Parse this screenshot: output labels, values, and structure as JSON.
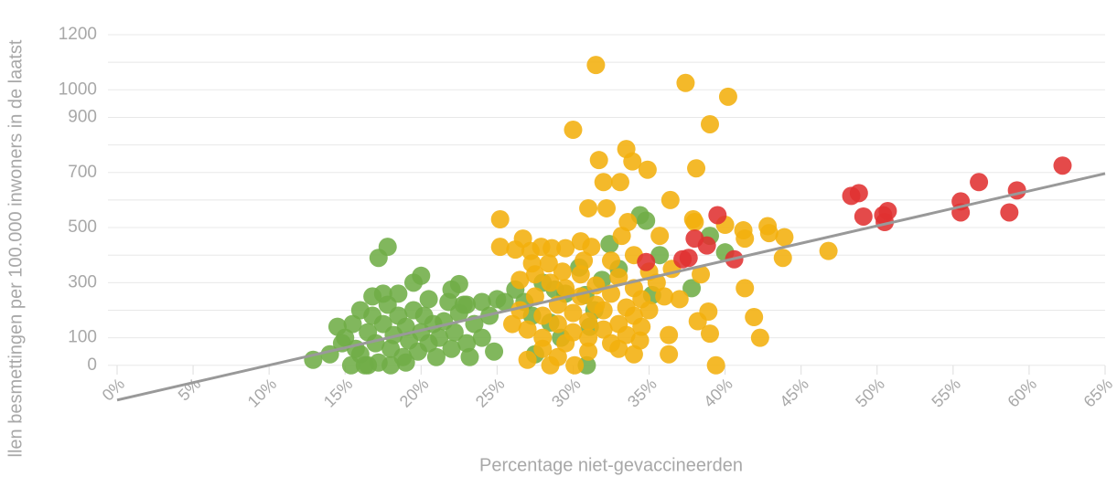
{
  "chart_data": {
    "type": "scatter",
    "y_label": "llen besmettingen per 100.000 inwoners in de laatst",
    "x_label": "Percentage niet-gevaccineerden",
    "xlim": [
      0,
      65
    ],
    "ylim": [
      -140,
      1200
    ],
    "xticks": [
      {
        "value": 0,
        "label": "0%"
      },
      {
        "value": 5,
        "label": "5%"
      },
      {
        "value": 10,
        "label": "10%"
      },
      {
        "value": 15,
        "label": "15%"
      },
      {
        "value": 20,
        "label": "20%"
      },
      {
        "value": 25,
        "label": "25%"
      },
      {
        "value": 30,
        "label": "30%"
      },
      {
        "value": 35,
        "label": "35%"
      },
      {
        "value": 40,
        "label": "40%"
      },
      {
        "value": 45,
        "label": "45%"
      },
      {
        "value": 50,
        "label": "50%"
      },
      {
        "value": 55,
        "label": "55%"
      },
      {
        "value": 60,
        "label": "60%"
      },
      {
        "value": 65,
        "label": "65%"
      }
    ],
    "yticks": [
      0,
      100,
      300,
      500,
      700,
      900,
      1000,
      1200
    ],
    "minor_yticks": [
      200,
      400,
      600,
      800,
      1100
    ],
    "grid": true,
    "trendline": {
      "x": [
        0,
        65
      ],
      "y": [
        -126,
        696
      ],
      "color": "#999999"
    },
    "series": [
      {
        "color": "#70ad47",
        "x": [
          15,
          15.5,
          16,
          16.5,
          16.8,
          17,
          17.2,
          17.5,
          17.8,
          18,
          18.2,
          18.5,
          18.5,
          18.8,
          19,
          19.2,
          19.5,
          19.8,
          20,
          20.2,
          20.5,
          20.8,
          21,
          21.2,
          21.5,
          22,
          22.2,
          22.5,
          23,
          23.2,
          23.5,
          24,
          24.5,
          18,
          19,
          16.5,
          22.8,
          21.8,
          20.5,
          17.5,
          17.2,
          17.8,
          16.8,
          19.5,
          20,
          22,
          22.5,
          23,
          24,
          25,
          24.8,
          25.5,
          26.2,
          26.8,
          27.3,
          27.5,
          28,
          28.5,
          28.8,
          29.2,
          29.5,
          30.4,
          30.8,
          31.1,
          31.4,
          31.9,
          32.4,
          33,
          34.4,
          34.8,
          35.2,
          35.7,
          37.8,
          39,
          40,
          30.9,
          12.9,
          14,
          14.5,
          14.8,
          15.4,
          15.7,
          16,
          16.3
        ],
        "values": [
          100,
          150,
          40,
          120,
          180,
          80,
          10,
          150,
          220,
          60,
          110,
          180,
          260,
          30,
          140,
          90,
          200,
          50,
          120,
          180,
          80,
          150,
          30,
          100,
          160,
          60,
          120,
          190,
          80,
          30,
          150,
          100,
          180,
          0,
          10,
          0,
          220,
          230,
          240,
          260,
          390,
          430,
          250,
          300,
          325,
          275,
          295,
          220,
          230,
          240,
          50,
          230,
          275,
          230,
          180,
          40,
          300,
          155,
          275,
          100,
          260,
          355,
          255,
          140,
          200,
          310,
          440,
          350,
          545,
          525,
          255,
          400,
          280,
          470,
          410,
          0,
          20,
          40,
          140,
          80,
          0,
          60,
          200,
          0
        ]
      },
      {
        "color": "#f2af0d",
        "x": [
          31.5,
          37.4,
          40.2,
          39,
          30,
          31.7,
          33.5,
          33.9,
          34.9,
          38.1,
          36.4,
          32,
          33.1,
          31,
          32.2,
          33.6,
          35.7,
          37.9,
          38,
          40,
          41.2,
          41.3,
          42.8,
          42.9,
          43.9,
          43.8,
          46.8,
          41.3,
          41.9,
          42.3,
          39.4,
          39,
          38.9,
          38.2,
          38.4,
          37,
          36.3,
          36.3,
          34.4,
          34,
          25.2,
          25.2,
          26.5,
          26.2,
          26.7,
          27.2,
          27.9,
          28.6,
          29.5,
          30.5,
          31.2,
          28.4,
          27.3,
          27,
          28.5,
          30.1,
          29,
          26,
          26.5,
          27,
          27.5,
          28,
          28,
          28.5,
          29,
          29,
          29.5,
          29.5,
          30,
          30,
          30.5,
          30.5,
          31,
          31,
          31.5,
          31.5,
          32,
          32,
          32.5,
          32.5,
          33,
          33,
          33.5,
          33.5,
          34,
          34,
          34.5,
          34.5,
          35,
          35.5,
          36,
          36.5,
          28,
          31,
          33,
          27.5,
          34,
          32.5,
          35,
          33.2,
          30.7,
          29.3
        ],
        "values": [
          1090,
          1025,
          975,
          875,
          855,
          745,
          785,
          740,
          710,
          715,
          600,
          665,
          665,
          570,
          570,
          520,
          470,
          530,
          520,
          510,
          490,
          460,
          505,
          480,
          465,
          390,
          415,
          280,
          175,
          100,
          0,
          115,
          195,
          160,
          330,
          240,
          40,
          110,
          90,
          40,
          530,
          430,
          310,
          420,
          460,
          415,
          430,
          425,
          425,
          450,
          430,
          370,
          370,
          20,
          0,
          0,
          30,
          150,
          200,
          130,
          250,
          100,
          180,
          300,
          150,
          220,
          80,
          280,
          120,
          190,
          250,
          330,
          100,
          160,
          220,
          290,
          130,
          200,
          80,
          260,
          150,
          320,
          110,
          210,
          180,
          280,
          140,
          240,
          200,
          300,
          250,
          350,
          60,
          50,
          60,
          330,
          400,
          380,
          340,
          470,
          380,
          340
        ]
      },
      {
        "color": "#e03131",
        "x": [
          34.8,
          37.2,
          37.6,
          38,
          38.8,
          39.5,
          40.6,
          48.3,
          48.8,
          49.1,
          50.4,
          50.5,
          50.7,
          55.5,
          55.5,
          56.7,
          58.7,
          59.2,
          62.2
        ],
        "values": [
          375,
          385,
          390,
          460,
          435,
          545,
          385,
          615,
          625,
          540,
          545,
          520,
          560,
          595,
          555,
          665,
          555,
          635,
          725
        ]
      }
    ]
  }
}
